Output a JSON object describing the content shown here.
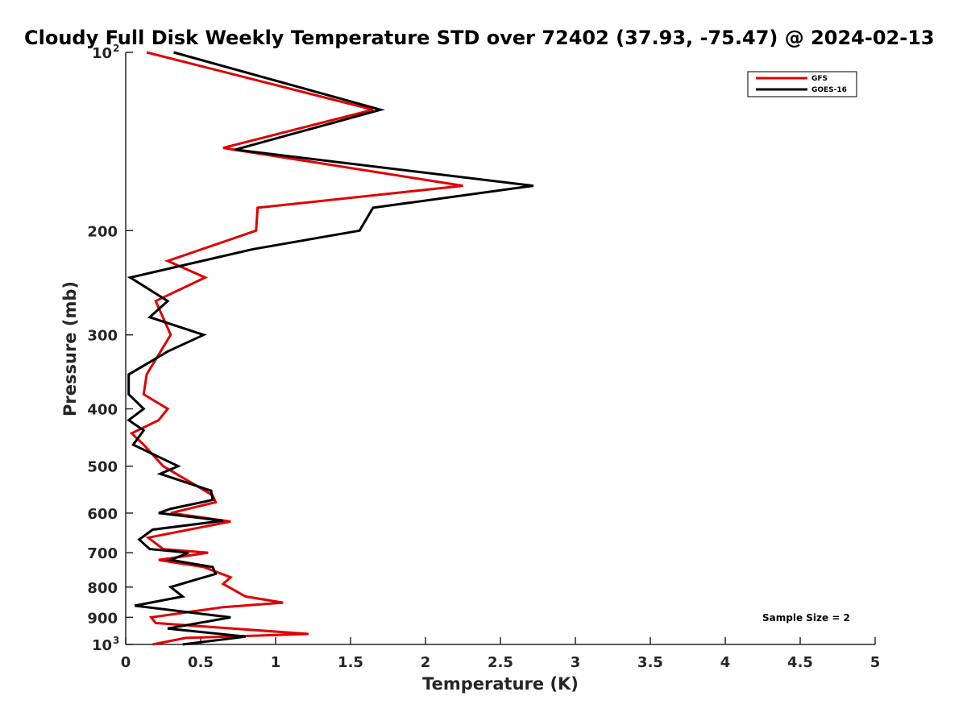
{
  "chart_data": {
    "type": "line",
    "title": "Cloudy Full Disk Weekly Temperature STD over 72402 (37.93, -75.47) @ 2024-02-13",
    "xlabel": "Temperature (K)",
    "ylabel": "Pressure (mb)",
    "xlim": [
      0,
      5
    ],
    "ylim": [
      100,
      1000
    ],
    "yscale": "log",
    "y_reversed": true,
    "grid": false,
    "legend_position": "top-right",
    "x_ticks": [
      {
        "value": 0,
        "label": "0"
      },
      {
        "value": 0.5,
        "label": "0.5"
      },
      {
        "value": 1,
        "label": "1"
      },
      {
        "value": 1.5,
        "label": "1.5"
      },
      {
        "value": 2,
        "label": "2"
      },
      {
        "value": 2.5,
        "label": "2.5"
      },
      {
        "value": 3,
        "label": "3"
      },
      {
        "value": 3.5,
        "label": "3.5"
      },
      {
        "value": 4,
        "label": "4"
      },
      {
        "value": 4.5,
        "label": "4.5"
      },
      {
        "value": 5,
        "label": "5"
      }
    ],
    "y_ticks": [
      {
        "value": 100,
        "label": "10",
        "exponent": "2"
      },
      {
        "value": 200,
        "label": "200"
      },
      {
        "value": 300,
        "label": "300"
      },
      {
        "value": 400,
        "label": "400"
      },
      {
        "value": 500,
        "label": "500"
      },
      {
        "value": 600,
        "label": "600"
      },
      {
        "value": 700,
        "label": "700"
      },
      {
        "value": 800,
        "label": "800"
      },
      {
        "value": 900,
        "label": "900"
      },
      {
        "value": 1000,
        "label": "10",
        "exponent": "3"
      }
    ],
    "annotation": "Sample Size = 2",
    "series": [
      {
        "name": "GFS",
        "color": "#e00000",
        "points": [
          {
            "x": 0.14,
            "y": 100
          },
          {
            "x": 1.65,
            "y": 125
          },
          {
            "x": 0.65,
            "y": 145
          },
          {
            "x": 2.25,
            "y": 168
          },
          {
            "x": 0.88,
            "y": 183
          },
          {
            "x": 0.87,
            "y": 200
          },
          {
            "x": 0.28,
            "y": 225
          },
          {
            "x": 0.53,
            "y": 240
          },
          {
            "x": 0.2,
            "y": 263
          },
          {
            "x": 0.3,
            "y": 300
          },
          {
            "x": 0.14,
            "y": 350
          },
          {
            "x": 0.12,
            "y": 378
          },
          {
            "x": 0.28,
            "y": 400
          },
          {
            "x": 0.22,
            "y": 418
          },
          {
            "x": 0.04,
            "y": 440
          },
          {
            "x": 0.12,
            "y": 460
          },
          {
            "x": 0.25,
            "y": 500
          },
          {
            "x": 0.58,
            "y": 560
          },
          {
            "x": 0.6,
            "y": 575
          },
          {
            "x": 0.3,
            "y": 600
          },
          {
            "x": 0.7,
            "y": 620
          },
          {
            "x": 0.15,
            "y": 660
          },
          {
            "x": 0.25,
            "y": 690
          },
          {
            "x": 0.55,
            "y": 700
          },
          {
            "x": 0.22,
            "y": 720
          },
          {
            "x": 0.52,
            "y": 740
          },
          {
            "x": 0.7,
            "y": 770
          },
          {
            "x": 0.65,
            "y": 790
          },
          {
            "x": 0.8,
            "y": 830
          },
          {
            "x": 1.05,
            "y": 850
          },
          {
            "x": 0.65,
            "y": 865
          },
          {
            "x": 0.17,
            "y": 900
          },
          {
            "x": 0.2,
            "y": 920
          },
          {
            "x": 1.22,
            "y": 960
          },
          {
            "x": 0.4,
            "y": 975
          },
          {
            "x": 0.18,
            "y": 1000
          }
        ]
      },
      {
        "name": "GOES-16",
        "color": "#000000",
        "points": [
          {
            "x": 0.32,
            "y": 100
          },
          {
            "x": 1.7,
            "y": 125
          },
          {
            "x": 0.73,
            "y": 146
          },
          {
            "x": 2.72,
            "y": 168
          },
          {
            "x": 1.65,
            "y": 183
          },
          {
            "x": 1.56,
            "y": 200
          },
          {
            "x": 0.85,
            "y": 215
          },
          {
            "x": 0.03,
            "y": 240
          },
          {
            "x": 0.28,
            "y": 263
          },
          {
            "x": 0.16,
            "y": 280
          },
          {
            "x": 0.52,
            "y": 300
          },
          {
            "x": 0.28,
            "y": 320
          },
          {
            "x": 0.02,
            "y": 350
          },
          {
            "x": 0.02,
            "y": 378
          },
          {
            "x": 0.12,
            "y": 400
          },
          {
            "x": 0.02,
            "y": 418
          },
          {
            "x": 0.12,
            "y": 435
          },
          {
            "x": 0.05,
            "y": 460
          },
          {
            "x": 0.35,
            "y": 500
          },
          {
            "x": 0.23,
            "y": 515
          },
          {
            "x": 0.57,
            "y": 550
          },
          {
            "x": 0.58,
            "y": 570
          },
          {
            "x": 0.3,
            "y": 590
          },
          {
            "x": 0.22,
            "y": 600
          },
          {
            "x": 0.65,
            "y": 618
          },
          {
            "x": 0.18,
            "y": 640
          },
          {
            "x": 0.09,
            "y": 665
          },
          {
            "x": 0.16,
            "y": 690
          },
          {
            "x": 0.42,
            "y": 700
          },
          {
            "x": 0.3,
            "y": 720
          },
          {
            "x": 0.58,
            "y": 740
          },
          {
            "x": 0.6,
            "y": 760
          },
          {
            "x": 0.3,
            "y": 800
          },
          {
            "x": 0.38,
            "y": 830
          },
          {
            "x": 0.06,
            "y": 860
          },
          {
            "x": 0.7,
            "y": 900
          },
          {
            "x": 0.28,
            "y": 940
          },
          {
            "x": 0.8,
            "y": 970
          },
          {
            "x": 0.38,
            "y": 1000
          }
        ]
      }
    ]
  }
}
